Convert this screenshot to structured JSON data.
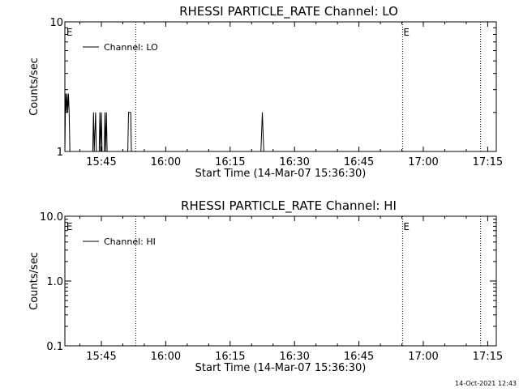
{
  "footer_timestamp": "14-Oct-2021 12:43",
  "chart_data": [
    {
      "type": "line",
      "title": "RHESSI PARTICLE_RATE Channel: LO",
      "xlabel": "Start Time (14-Mar-07 15:36:30)",
      "ylabel": "Counts/sec",
      "yscale": "log",
      "xlim": [
        "15:36:30",
        "17:17:00"
      ],
      "ylim": [
        1,
        10
      ],
      "x_ticks": [
        "15:45",
        "16:00",
        "16:15",
        "16:30",
        "16:45",
        "17:00",
        "17:15"
      ],
      "y_ticks": [
        "1",
        "10"
      ],
      "legend": {
        "entries": [
          "Channel: LO"
        ],
        "position": "top-left"
      },
      "markers": [
        {
          "label": "E",
          "time": "15:36:40"
        },
        {
          "label": "E",
          "time": "16:55:10"
        }
      ],
      "dotted_lines": [
        "15:53:00",
        "16:55:10",
        "17:13:20"
      ],
      "series": [
        {
          "x": [
            "15:36:30",
            "15:36:40",
            "15:36:50",
            "15:37:00",
            "15:37:10",
            "15:37:20",
            "15:37:30",
            "15:37:40",
            "15:43:00",
            "15:43:10",
            "15:43:20",
            "15:43:40",
            "15:43:50",
            "15:44:30",
            "15:44:40",
            "15:44:50",
            "15:45:00",
            "15:45:10",
            "15:45:40",
            "15:45:50",
            "15:46:00",
            "15:46:10",
            "15:46:20",
            "15:51:10",
            "15:51:20",
            "15:51:30",
            "15:51:50",
            "15:52:00",
            "16:22:10",
            "16:22:20",
            "16:22:30",
            "16:22:40",
            "16:22:50"
          ],
          "values": [
            1,
            2.8,
            2.0,
            2.8,
            2.0,
            2.8,
            2.0,
            1,
            1,
            2.0,
            1,
            2.0,
            1,
            1,
            2.0,
            1,
            2.0,
            1,
            1,
            2.0,
            1,
            2.0,
            1,
            1,
            2.0,
            2.0,
            2.0,
            1,
            1,
            1.4,
            2.0,
            1.4,
            1
          ]
        }
      ]
    },
    {
      "type": "line",
      "title": "RHESSI PARTICLE_RATE Channel: HI",
      "xlabel": "Start Time (14-Mar-07 15:36:30)",
      "ylabel": "Counts/sec",
      "yscale": "log",
      "xlim": [
        "15:36:30",
        "17:17:00"
      ],
      "ylim": [
        0.1,
        10.0
      ],
      "x_ticks": [
        "15:45",
        "16:00",
        "16:15",
        "16:30",
        "16:45",
        "17:00",
        "17:15"
      ],
      "y_ticks": [
        "0.1",
        "1.0",
        "10.0"
      ],
      "legend": {
        "entries": [
          "Channel: HI"
        ],
        "position": "top-left"
      },
      "markers": [
        {
          "label": "E",
          "time": "15:36:40"
        },
        {
          "label": "E",
          "time": "16:55:10"
        }
      ],
      "dotted_lines": [
        "15:53:00",
        "16:55:10",
        "17:13:20"
      ],
      "series": [
        {
          "x": [],
          "values": []
        }
      ]
    }
  ]
}
